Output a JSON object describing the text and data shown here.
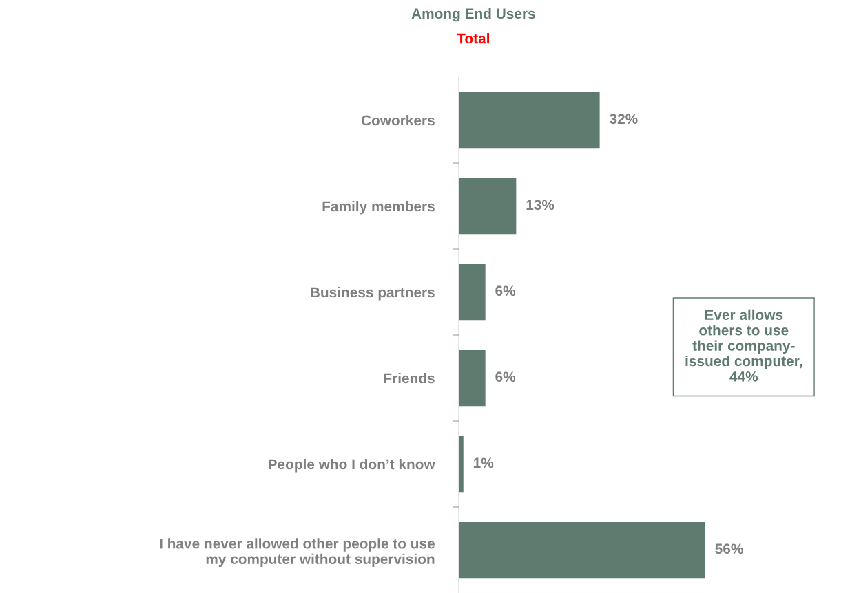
{
  "chart_data": {
    "type": "bar",
    "orientation": "horizontal",
    "title": "Among End Users",
    "subtitle": "Total",
    "categories": [
      "Coworkers",
      "Family members",
      "Business partners",
      "Friends",
      "People who I don’t know",
      "I have never allowed other people to use\nmy computer without supervision"
    ],
    "values": [
      32,
      13,
      6,
      6,
      1,
      56
    ],
    "color": "#5f7a6e",
    "data_labels": true,
    "value_labels": [
      "32%",
      "13%",
      "6%",
      "6%",
      "1%",
      "56%"
    ],
    "annotations": [
      "Ever allows\nothers to use\ntheir company-\nissued computer,\n44%"
    ],
    "grid": false,
    "legend": false,
    "tick_labels": "y"
  }
}
